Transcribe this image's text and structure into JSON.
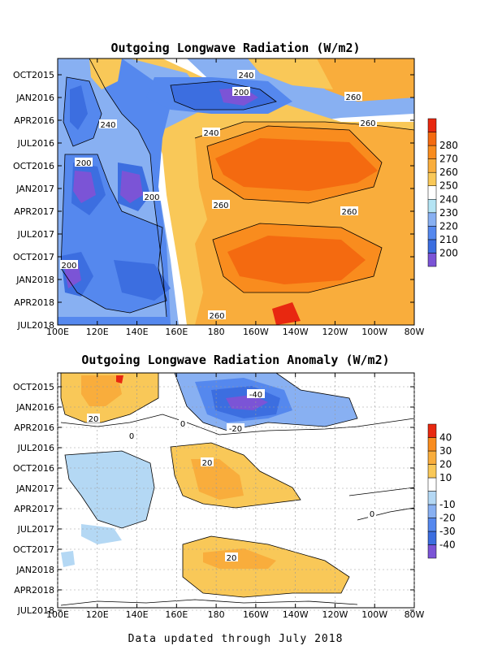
{
  "footer": "Data updated through July 2018",
  "chart_data": [
    {
      "type": "heatmap",
      "title": "Outgoing Longwave Radiation (W/m2)",
      "x_ticks": [
        "100E",
        "120E",
        "140E",
        "160E",
        "180",
        "160W",
        "140W",
        "120W",
        "100W",
        "80W"
      ],
      "y_ticks": [
        "OCT2015",
        "JAN2016",
        "APR2016",
        "JUL2016",
        "OCT2016",
        "JAN2017",
        "APR2017",
        "JUL2017",
        "OCT2017",
        "JAN2018",
        "APR2018",
        "JUL2018"
      ],
      "colorbar_levels": [
        "200",
        "210",
        "220",
        "230",
        "240",
        "250",
        "260",
        "270",
        "280"
      ],
      "colorbar_colors": [
        "#7b54d6",
        "#3c6ee0",
        "#5588ee",
        "#88b0f2",
        "#b4e4f4",
        "#ffffff",
        "#f9c858",
        "#f9ad3c",
        "#f98c1e",
        "#f46a10",
        "#e82810"
      ],
      "contour_labels": [
        "240",
        "200",
        "260",
        "260",
        "240",
        "240",
        "200",
        "200",
        "260",
        "260",
        "200",
        "260"
      ]
    },
    {
      "type": "heatmap",
      "title": "Outgoing Longwave Radiation Anomaly (W/m2)",
      "x_ticks": [
        "100E",
        "120E",
        "140E",
        "160E",
        "180",
        "160W",
        "140W",
        "120W",
        "100W",
        "80W"
      ],
      "y_ticks": [
        "OCT2015",
        "JAN2016",
        "APR2016",
        "JUL2016",
        "OCT2016",
        "JAN2017",
        "APR2017",
        "JUL2017",
        "OCT2017",
        "JAN2018",
        "APR2018",
        "JUL2018"
      ],
      "colorbar_levels": [
        "-40",
        "-30",
        "-20",
        "-10",
        "10",
        "20",
        "30",
        "40"
      ],
      "colorbar_colors": [
        "#7b54d6",
        "#3c6ee0",
        "#5588ee",
        "#88b0f2",
        "#b4d8f4",
        "#ffffff",
        "#f9c858",
        "#f9ad3c",
        "#f98c1e",
        "#e82810"
      ],
      "contour_labels": [
        "-40",
        "20",
        "0",
        "-20",
        "0",
        "20",
        "0",
        "20"
      ]
    }
  ]
}
